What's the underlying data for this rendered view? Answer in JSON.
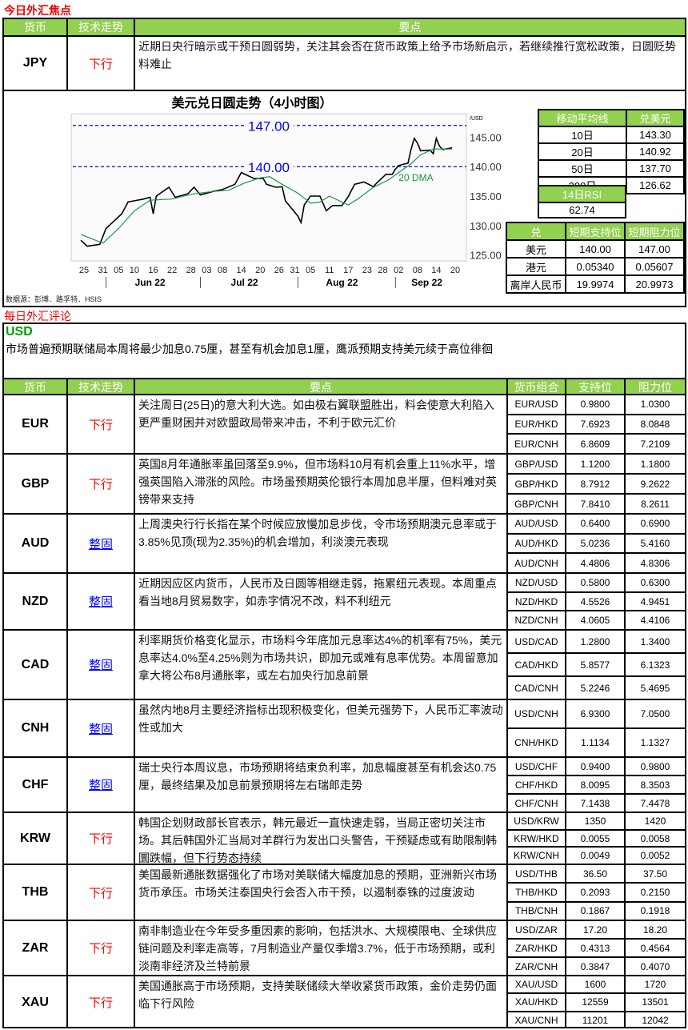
{
  "focus": {
    "title": "今日外汇焦点",
    "headers": [
      "货币",
      "技术走势",
      "要点"
    ],
    "row": {
      "currency": "JPY",
      "trend": "下行",
      "text": "近期日央行暗示或干预日圆弱势，关注其会否在货币政策上给予市场新启示，若继续推行宽松政策，日圆贬势料难止"
    }
  },
  "chart_data": {
    "type": "line",
    "title": "美元兑日圆走势（4小时图）",
    "unit_label": "/USD",
    "yticks": [
      "145.00",
      "140.00",
      "135.00",
      "130.00",
      "125.00"
    ],
    "ylim": [
      124,
      149
    ],
    "xticks": [
      "25",
      "31",
      "05",
      "10",
      "16",
      "22",
      "28",
      "03",
      "08",
      "14",
      "20",
      "26",
      "31",
      "05",
      "11",
      "17",
      "23",
      "28",
      "02",
      "08",
      "14",
      "20"
    ],
    "xtick_dates": [
      "2022-05-25",
      "2022-05-31",
      "2022-06-05",
      "2022-06-10",
      "2022-06-16",
      "2022-06-22",
      "2022-06-28",
      "2022-07-03",
      "2022-07-08",
      "2022-07-14",
      "2022-07-20",
      "2022-07-26",
      "2022-07-31",
      "2022-08-05",
      "2022-08-11",
      "2022-08-17",
      "2022-08-23",
      "2022-08-28",
      "2022-09-02",
      "2022-09-08",
      "2022-09-14",
      "2022-09-20"
    ],
    "months": [
      {
        "label": "Jun 22",
        "date": "2022-06-15"
      },
      {
        "label": "Jul 22",
        "date": "2022-07-15"
      },
      {
        "label": "Aug 22",
        "date": "2022-08-15"
      },
      {
        "label": "Sep 22",
        "date": "2022-09-11"
      }
    ],
    "levels": [
      {
        "value": 147.0,
        "label": "147.00"
      },
      {
        "value": 140.0,
        "label": "140.00"
      }
    ],
    "series": [
      {
        "name": "",
        "color": "#000000",
        "points": [
          [
            "2022-05-24",
            127.5
          ],
          [
            "2022-05-26",
            126.5
          ],
          [
            "2022-05-30",
            126.8
          ],
          [
            "2022-06-01",
            129.5
          ],
          [
            "2022-06-03",
            130.5
          ],
          [
            "2022-06-06",
            132.0
          ],
          [
            "2022-06-08",
            134.0
          ],
          [
            "2022-06-10",
            134.2
          ],
          [
            "2022-06-13",
            134.5
          ],
          [
            "2022-06-15",
            134.8
          ],
          [
            "2022-06-16",
            132.0
          ],
          [
            "2022-06-17",
            135.0
          ],
          [
            "2022-06-21",
            136.5
          ],
          [
            "2022-06-23",
            134.8
          ],
          [
            "2022-06-27",
            135.4
          ],
          [
            "2022-06-29",
            136.5
          ],
          [
            "2022-07-01",
            135.2
          ],
          [
            "2022-07-05",
            135.8
          ],
          [
            "2022-07-08",
            136.1
          ],
          [
            "2022-07-12",
            137.0
          ],
          [
            "2022-07-14",
            139.0
          ],
          [
            "2022-07-18",
            138.0
          ],
          [
            "2022-07-21",
            138.0
          ],
          [
            "2022-07-22",
            137.0
          ],
          [
            "2022-07-25",
            136.5
          ],
          [
            "2022-07-27",
            136.6
          ],
          [
            "2022-07-28",
            134.2
          ],
          [
            "2022-08-01",
            131.6
          ],
          [
            "2022-08-02",
            130.5
          ],
          [
            "2022-08-03",
            133.5
          ],
          [
            "2022-08-05",
            135.0
          ],
          [
            "2022-08-08",
            135.0
          ],
          [
            "2022-08-10",
            132.5
          ],
          [
            "2022-08-12",
            133.4
          ],
          [
            "2022-08-15",
            133.4
          ],
          [
            "2022-08-17",
            134.9
          ],
          [
            "2022-08-19",
            137.0
          ],
          [
            "2022-08-22",
            137.4
          ],
          [
            "2022-08-25",
            136.6
          ],
          [
            "2022-08-26",
            137.2
          ],
          [
            "2022-08-29",
            138.7
          ],
          [
            "2022-08-31",
            138.7
          ],
          [
            "2022-09-01",
            139.6
          ],
          [
            "2022-09-02",
            140.2
          ],
          [
            "2022-09-05",
            140.6
          ],
          [
            "2022-09-06",
            143.0
          ],
          [
            "2022-09-07",
            144.8
          ],
          [
            "2022-09-08",
            144.0
          ],
          [
            "2022-09-09",
            142.7
          ],
          [
            "2022-09-12",
            142.8
          ],
          [
            "2022-09-13",
            142.2
          ],
          [
            "2022-09-14",
            144.8
          ],
          [
            "2022-09-15",
            143.5
          ],
          [
            "2022-09-16",
            142.9
          ],
          [
            "2022-09-19",
            143.2
          ]
        ]
      },
      {
        "name": "20 DMA",
        "color": "#1a9641",
        "points": [
          [
            "2022-05-24",
            128.5
          ],
          [
            "2022-05-31",
            127.0
          ],
          [
            "2022-06-05",
            129.5
          ],
          [
            "2022-06-10",
            132.5
          ],
          [
            "2022-06-15",
            134.3
          ],
          [
            "2022-06-22",
            134.5
          ],
          [
            "2022-06-28",
            135.3
          ],
          [
            "2022-07-05",
            135.8
          ],
          [
            "2022-07-10",
            136.0
          ],
          [
            "2022-07-15",
            137.2
          ],
          [
            "2022-07-20",
            138.1
          ],
          [
            "2022-07-23",
            138.3
          ],
          [
            "2022-07-27",
            137.0
          ],
          [
            "2022-08-01",
            135.5
          ],
          [
            "2022-08-05",
            133.8
          ],
          [
            "2022-08-08",
            134.0
          ],
          [
            "2022-08-11",
            135.0
          ],
          [
            "2022-08-17",
            133.5
          ],
          [
            "2022-08-20",
            134.5
          ],
          [
            "2022-08-25",
            136.5
          ],
          [
            "2022-08-30",
            137.8
          ],
          [
            "2022-09-02",
            139.0
          ],
          [
            "2022-09-06",
            140.5
          ],
          [
            "2022-09-09",
            142.0
          ],
          [
            "2022-09-13",
            143.0
          ],
          [
            "2022-09-19",
            143.0
          ]
        ]
      }
    ],
    "source": "数据源：彭博．路孚特．HSIS"
  },
  "ma": {
    "headers": [
      "移动平均线",
      "兑美元"
    ],
    "rows": [
      [
        "10日",
        "143.30"
      ],
      [
        "20日",
        "140.92"
      ],
      [
        "50日",
        "137.70"
      ],
      [
        "200日",
        "126.62"
      ]
    ]
  },
  "rsi": {
    "label": "14日RSI",
    "value": "62.74"
  },
  "sr": {
    "headers": [
      "兑",
      "短期支持位",
      "短期阻力位"
    ],
    "rows": [
      [
        "美元",
        "140.00",
        "147.00"
      ],
      [
        "港元",
        "0.05340",
        "0.05607"
      ],
      [
        "离岸人民币",
        "19.9974",
        "20.9973"
      ]
    ]
  },
  "review": {
    "title": "每日外汇评论",
    "usd_label": "USD",
    "usd_text": "市场普遍预期联储局本周将最少加息0.75厘，甚至有机会加息1厘，鹰派预期支持美元续于高位徘徊",
    "headers": [
      "货币",
      "技术走势",
      "要点",
      "货币组合",
      "支持位",
      "阻力位"
    ],
    "rows": [
      {
        "currency": "EUR",
        "trend": "下行",
        "text": "关注周日(25日)的意大利大选。如由极右翼联盟胜出，料会使意大利陷入更严重财困并对欧盟政局带来冲击，不利于欧元汇价",
        "pairs": [
          [
            "EUR/USD",
            "0.9800",
            "1.0300"
          ],
          [
            "EUR/HKD",
            "7.6923",
            "8.0848"
          ],
          [
            "EUR/CNH",
            "6.8609",
            "7.2109"
          ]
        ]
      },
      {
        "currency": "GBP",
        "trend": "下行",
        "text": "英国8月年通胀率虽回落至9.9%，但市场料10月有机会重上11%水平，增强英国陷入滞涨的风险。市场虽预期英伦银行本周加息半厘，但料难对英镑带来支持",
        "pairs": [
          [
            "GBP/USD",
            "1.1200",
            "1.1800"
          ],
          [
            "GBP/HKD",
            "8.7912",
            "9.2622"
          ],
          [
            "GBP/CNH",
            "7.8410",
            "8.2611"
          ]
        ]
      },
      {
        "currency": "AUD",
        "trend": "整固",
        "text": "上周澳央行行长指在某个时候应放慢加息步伐，令市场预期澳元息率或于3.85%见顶(现为2.35%)的机会增加，利淡澳元表现",
        "pairs": [
          [
            "AUD/USD",
            "0.6400",
            "0.6900"
          ],
          [
            "AUD/HKD",
            "5.0236",
            "5.4160"
          ],
          [
            "AUD/CNH",
            "4.4806",
            "4.8306"
          ]
        ]
      },
      {
        "currency": "NZD",
        "trend": "整固",
        "text": "近期因应区内货币，人民币及日圆等相继走弱，拖累纽元表现。本周重点看当地8月贸易数字，如赤字情况不改，料不利纽元",
        "pairs": [
          [
            "NZD/USD",
            "0.5800",
            "0.6300"
          ],
          [
            "NZD/HKD",
            "4.5526",
            "4.9451"
          ],
          [
            "NZD/CNH",
            "4.0605",
            "4.4106"
          ]
        ]
      },
      {
        "currency": "CAD",
        "trend": "整固",
        "text": "利率期货价格变化显示，市场料今年底加元息率达4%的机率有75%，美元息率达4.0%至4.25%则为市场共识，即加元或难有息率优势。本周留意加拿大将公布8月通胀率，或左右加央行加息前景",
        "pairs": [
          [
            "USD/CAD",
            "1.2800",
            "1.3400"
          ],
          [
            "CAD/HKD",
            "5.8577",
            "6.1323"
          ],
          [
            "CAD/CNH",
            "5.2246",
            "5.4695"
          ]
        ]
      },
      {
        "currency": "CNH",
        "trend": "整固",
        "text": "虽然内地8月主要经济指标出现积极变化，但美元强势下，人民币汇率波动性或加大",
        "pairs": [
          [
            "USD/CNH",
            "6.9300",
            "7.0500"
          ],
          [
            "CNH/HKD",
            "1.1134",
            "1.1327"
          ]
        ]
      },
      {
        "currency": "CHF",
        "trend": "整固",
        "text": "瑞士央行本周议息，市场预期将结束负利率，加息幅度甚至有机会达0.75厘，最终结果及加息前景预期将左右瑞郎走势",
        "pairs": [
          [
            "USD/CHF",
            "0.9400",
            "0.9800"
          ],
          [
            "CHF/HKD",
            "8.0095",
            "8.3503"
          ],
          [
            "CHF/CNH",
            "7.1438",
            "7.4478"
          ]
        ]
      },
      {
        "currency": "KRW",
        "trend": "下行",
        "text": "韩国企划财政部长官表示，韩元最近一直快速走弱，当局正密切关注市场。其后韩国外汇当局对羊群行为发出口头警告，干预疑虑或有助限制韩圜跌幅，但下行势态持续",
        "pairs": [
          [
            "USD/KRW",
            "1350",
            "1420"
          ],
          [
            "KRW/HKD",
            "0.0055",
            "0.0058"
          ],
          [
            "KRW/CNH",
            "0.0049",
            "0.0052"
          ]
        ]
      },
      {
        "currency": "THB",
        "trend": "下行",
        "text": "美国最新通胀数据强化了市场对美联储大幅度加息的预期，亚洲新兴市场货币承压。市场关注泰国央行会否入市干预，以遏制泰铢的过度波动",
        "pairs": [
          [
            "USD/THB",
            "36.50",
            "37.50"
          ],
          [
            "THB/HKD",
            "0.2093",
            "0.2150"
          ],
          [
            "THB/CNH",
            "0.1867",
            "0.1918"
          ]
        ]
      },
      {
        "currency": "ZAR",
        "trend": "下行",
        "text": "南非制造业在今年受多重因素的影响，包括洪水、大规模限电、全球供应链问题及利率走高等，7月制造业产量仅季增3.7%，低于市场预期，或利淡南非经济及兰特前景",
        "pairs": [
          [
            "USD/ZAR",
            "17.20",
            "18.20"
          ],
          [
            "ZAR/HKD",
            "0.4313",
            "0.4564"
          ],
          [
            "ZAR/CNH",
            "0.3847",
            "0.4070"
          ]
        ]
      },
      {
        "currency": "XAU",
        "trend": "下行",
        "text": "美国通胀高于市场预期，支持美联储续大举收紧货币政策，金价走势仍面临下行风险",
        "pairs": [
          [
            "XAU/USD",
            "1600",
            "1720"
          ],
          [
            "XAU/HKD",
            "12559",
            "13501"
          ],
          [
            "XAU/CNH",
            "11201",
            "12042"
          ]
        ]
      }
    ]
  },
  "colors": {
    "header_green": "#92d050",
    "down": "#ff0000",
    "flat": "#0000ff",
    "usd_label": "#00a000",
    "level_line": "#0000ff",
    "dma": "#1a9641"
  }
}
